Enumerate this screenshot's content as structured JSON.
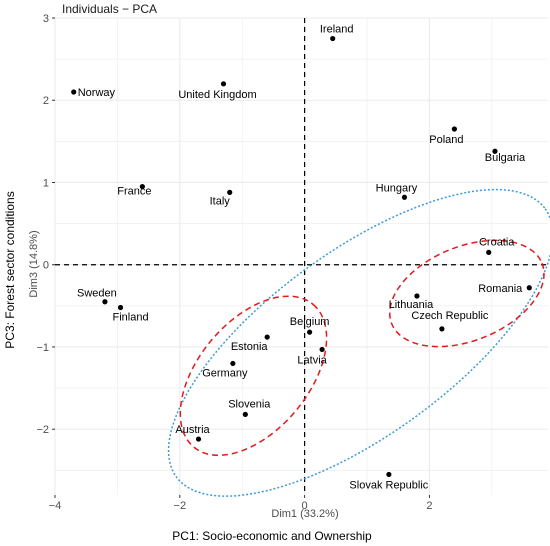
{
  "chart_data": {
    "type": "scatter",
    "title": "Individuals − PCA",
    "xlabel_inner": "Dim1 (33.2%)",
    "ylabel_inner": "Dim3 (14.8%)",
    "xlabel": "PC1: Socio-economic and Ownership",
    "ylabel": "PC3: Forest sector conditions",
    "xlim": [
      -4.0,
      3.9
    ],
    "ylim": [
      -2.8,
      3.0
    ],
    "x_ticks": [
      -4,
      -2,
      0,
      2
    ],
    "x_tick_labels": [
      "−4",
      "−2",
      "0",
      "2"
    ],
    "y_ticks": [
      -2,
      -1,
      0,
      1,
      2,
      3
    ],
    "y_tick_labels": [
      "−2",
      "−1",
      "0",
      "1",
      "2",
      "3"
    ],
    "grid": true,
    "colors": {
      "panel": "#ffffff",
      "grid": "#ebebeb",
      "point": "#000000",
      "red_ellipse": "#e41a1c",
      "blue_ellipse": "#3a9ad9"
    },
    "points": [
      {
        "label": "Ireland",
        "x": 0.45,
        "y": 2.75
      },
      {
        "label": "Norway",
        "x": -3.7,
        "y": 2.1
      },
      {
        "label": "United Kingdom",
        "x": -1.3,
        "y": 2.2
      },
      {
        "label": "Poland",
        "x": 2.4,
        "y": 1.65
      },
      {
        "label": "Bulgaria",
        "x": 3.05,
        "y": 1.38
      },
      {
        "label": "France",
        "x": -2.6,
        "y": 0.95
      },
      {
        "label": "Italy",
        "x": -1.2,
        "y": 0.88
      },
      {
        "label": "Hungary",
        "x": 1.6,
        "y": 0.82
      },
      {
        "label": "Croatia",
        "x": 2.95,
        "y": 0.15
      },
      {
        "label": "Romania",
        "x": 3.6,
        "y": -0.28
      },
      {
        "label": "Sweden",
        "x": -3.2,
        "y": -0.45
      },
      {
        "label": "Finland",
        "x": -2.95,
        "y": -0.52
      },
      {
        "label": "Lithuania",
        "x": 1.8,
        "y": -0.38
      },
      {
        "label": "Czech Republic",
        "x": 2.2,
        "y": -0.78
      },
      {
        "label": "Belgium",
        "x": 0.08,
        "y": -0.82
      },
      {
        "label": "Estonia",
        "x": -0.6,
        "y": -0.88
      },
      {
        "label": "Latvia",
        "x": 0.28,
        "y": -1.03
      },
      {
        "label": "Germany",
        "x": -1.15,
        "y": -1.2
      },
      {
        "label": "Slovenia",
        "x": -0.95,
        "y": -1.82
      },
      {
        "label": "Austria",
        "x": -1.7,
        "y": -2.12
      },
      {
        "label": "Slovak Republic",
        "x": 1.35,
        "y": -2.55
      }
    ]
  }
}
